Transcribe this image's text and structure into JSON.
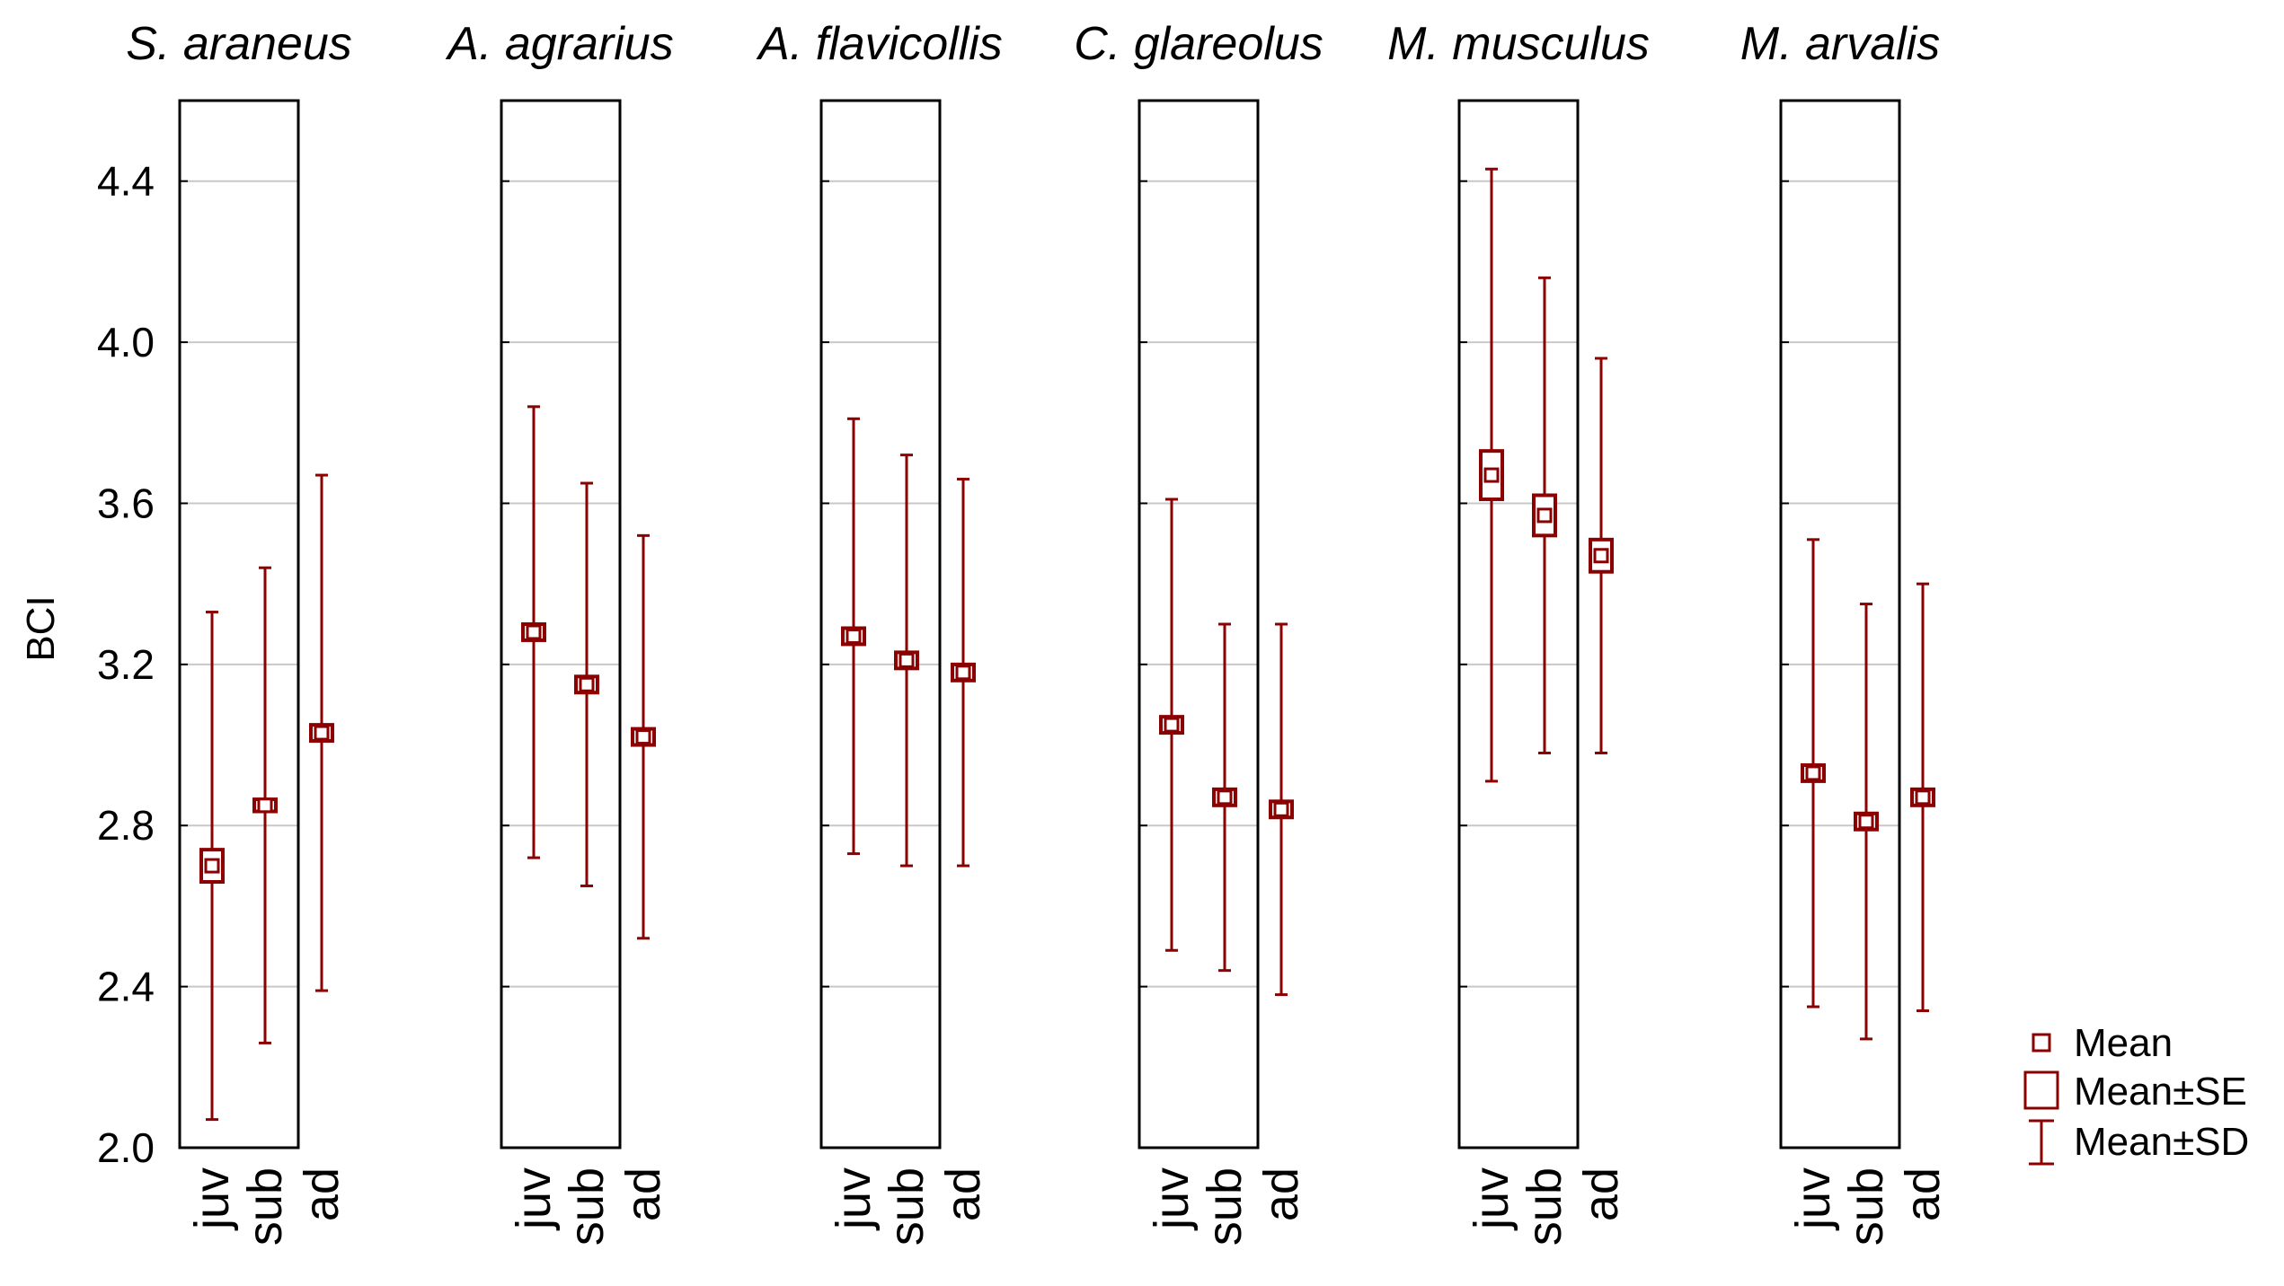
{
  "chart_data": {
    "type": "error_bar",
    "ylabel": "BCI",
    "ylim": [
      2.0,
      4.6
    ],
    "yticks": [
      "2.0",
      "2.4",
      "2.8",
      "3.2",
      "3.6",
      "4.0",
      "4.4"
    ],
    "categories": [
      "juv",
      "sub",
      "ad"
    ],
    "color": "#8b0000",
    "grid": true,
    "legend": {
      "position": "bottom-right",
      "items": [
        "Mean",
        "Mean±SE",
        "Mean±SD"
      ]
    },
    "panels": [
      {
        "title": "S. araneus",
        "mean": [
          2.7,
          2.85,
          3.03
        ],
        "se": [
          0.04,
          0.015,
          0.02
        ],
        "sd": [
          0.63,
          0.59,
          0.64
        ]
      },
      {
        "title": "A. agrarius",
        "mean": [
          3.28,
          3.15,
          3.02
        ],
        "se": [
          0.02,
          0.02,
          0.02
        ],
        "sd": [
          0.56,
          0.5,
          0.5
        ]
      },
      {
        "title": "A. flavicollis",
        "mean": [
          3.27,
          3.21,
          3.18
        ],
        "se": [
          0.02,
          0.02,
          0.02
        ],
        "sd": [
          0.54,
          0.51,
          0.48
        ]
      },
      {
        "title": "C. glareolus",
        "mean": [
          3.05,
          2.87,
          2.84
        ],
        "se": [
          0.02,
          0.02,
          0.02
        ],
        "sd": [
          0.56,
          0.43,
          0.46
        ]
      },
      {
        "title": "M. musculus",
        "mean": [
          3.67,
          3.57,
          3.47
        ],
        "se": [
          0.06,
          0.05,
          0.04
        ],
        "sd": [
          0.76,
          0.59,
          0.49
        ]
      },
      {
        "title": "M. arvalis",
        "mean": [
          2.93,
          2.81,
          2.87
        ],
        "se": [
          0.02,
          0.02,
          0.02
        ],
        "sd": [
          0.58,
          0.54,
          0.53
        ]
      }
    ]
  }
}
